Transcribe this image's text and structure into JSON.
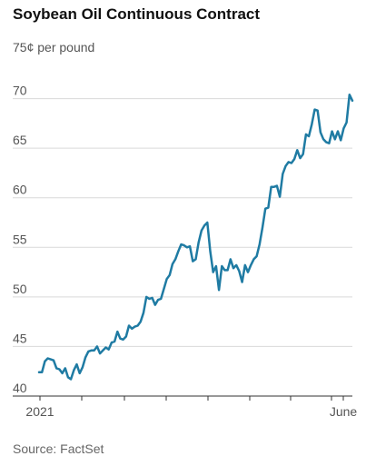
{
  "chart_data": {
    "type": "line",
    "title": "Soybean Oil Continuous Contract",
    "unit_label": "75¢ per pound",
    "source": "Source: FactSet",
    "xlabel": "",
    "ylabel": "",
    "ylim": [
      40,
      75
    ],
    "y_ticks": [
      40,
      45,
      50,
      55,
      60,
      65,
      70
    ],
    "x_tick_labels": [
      "2021",
      "June"
    ],
    "grid": true,
    "series": [
      {
        "color": "#1f7ba3",
        "values": [
          42.4,
          42.4,
          43.5,
          43.8,
          43.7,
          43.6,
          42.8,
          42.7,
          42.3,
          42.8,
          41.9,
          41.7,
          42.6,
          43.2,
          42.3,
          42.9,
          43.9,
          44.5,
          44.6,
          44.6,
          45.0,
          44.3,
          44.6,
          44.9,
          44.7,
          45.4,
          45.5,
          46.5,
          45.8,
          45.7,
          46.0,
          47.1,
          46.8,
          47.0,
          47.1,
          47.5,
          48.4,
          50.0,
          49.8,
          49.9,
          49.2,
          49.7,
          49.8,
          50.8,
          51.8,
          52.2,
          53.3,
          53.8,
          54.6,
          55.3,
          55.2,
          55.0,
          55.1,
          53.6,
          53.8,
          55.5,
          56.7,
          57.2,
          57.5,
          54.6,
          52.5,
          53.1,
          50.7,
          53.1,
          52.7,
          52.7,
          53.8,
          52.9,
          53.2,
          52.6,
          51.5,
          53.2,
          52.5,
          53.2,
          53.8,
          54.1,
          55.3,
          57.0,
          58.9,
          59.0,
          61.1,
          61.1,
          61.2,
          60.1,
          62.4,
          63.2,
          63.6,
          63.5,
          63.9,
          64.8,
          64.0,
          64.4,
          66.4,
          66.2,
          67.4,
          68.9,
          68.8,
          66.6,
          65.9,
          65.6,
          65.5,
          66.7,
          65.9,
          66.7,
          65.8,
          67.0,
          67.6,
          70.4,
          69.8
        ]
      }
    ]
  }
}
